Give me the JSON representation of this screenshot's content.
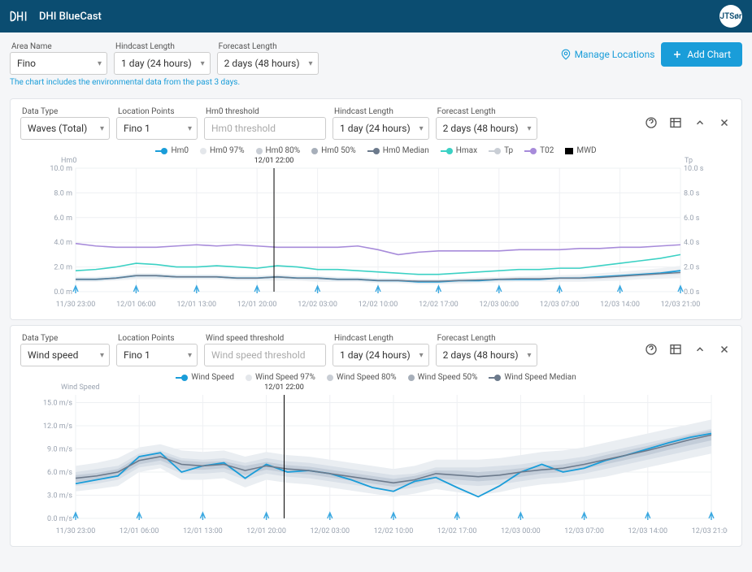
{
  "header": {
    "app_title": "DHI BlueCast",
    "avatar": "JTSør"
  },
  "toolbar": {
    "area": {
      "label": "Area Name",
      "value": "Fino"
    },
    "hindcast": {
      "label": "Hindcast Length",
      "value": "1 day (24 hours)"
    },
    "forecast": {
      "label": "Forecast Length",
      "value": "2 days (48 hours)"
    },
    "manage": "Manage Locations",
    "add": "Add Chart"
  },
  "hint": "The chart includes the environmental data from the past 3 days.",
  "panels": [
    {
      "selects": {
        "datatype": {
          "label": "Data Type",
          "value": "Waves (Total)"
        },
        "location": {
          "label": "Location Points",
          "value": "Fino 1"
        },
        "threshold": {
          "label": "Hm0 threshold",
          "placeholder": "Hm0 threshold"
        },
        "hindcast": {
          "label": "Hindcast Length",
          "value": "1 day (24 hours)"
        },
        "forecast": {
          "label": "Forecast Length",
          "value": "2 days (48 hours)"
        }
      },
      "legend": [
        {
          "label": "Hm0",
          "color": "#1a9dd9",
          "kind": "linedot"
        },
        {
          "label": "Hm0 97%",
          "color": "#e4e7eb",
          "kind": "dot"
        },
        {
          "label": "Hm0 80%",
          "color": "#c9ced5",
          "kind": "dot"
        },
        {
          "label": "Hm0 50%",
          "color": "#a7afba",
          "kind": "dot"
        },
        {
          "label": "Hm0 Median",
          "color": "#6c7a8c",
          "kind": "linedot"
        },
        {
          "label": "Hmax",
          "color": "#3bd1c4",
          "kind": "linedot"
        },
        {
          "label": "Tp",
          "color": "#c9ced5",
          "kind": "linedot"
        },
        {
          "label": "T02",
          "color": "#a78bda",
          "kind": "linedot"
        },
        {
          "label": "MWD",
          "color": "#000000",
          "kind": "sq"
        }
      ],
      "chart": {
        "height": 190,
        "y_title_left": "Hm0",
        "y_title_right": "Tp",
        "y_left": {
          "min": 0,
          "max": 10,
          "step": 2,
          "unit": " m"
        },
        "y_right": {
          "min": 0,
          "max": 10,
          "step": 2,
          "unit": " s"
        },
        "x_labels": [
          "11/30 23:00",
          "12/01 06:00",
          "12/01 13:00",
          "12/01 20:00",
          "12/02 03:00",
          "12/02 10:00",
          "12/02 17:00",
          "12/03 00:00",
          "12/03 07:00",
          "12/03 14:00",
          "12/03 21:00"
        ],
        "cursor_index": 3,
        "cursor_label": "12/01 22:00",
        "series": {
          "t02": {
            "color": "#a78bda",
            "width": 1.6,
            "y": [
              3.9,
              3.7,
              3.6,
              3.6,
              3.6,
              3.7,
              3.8,
              3.7,
              3.8,
              3.7,
              3.6,
              3.6,
              3.6,
              3.6,
              3.7,
              3.4,
              3.0,
              3.2,
              3.3,
              3.3,
              3.3,
              3.3,
              3.4,
              3.4,
              3.4,
              3.5,
              3.5,
              3.6,
              3.6,
              3.7,
              3.8
            ]
          },
          "hmax": {
            "color": "#3bd1c4",
            "width": 1.6,
            "y": [
              1.7,
              1.8,
              2.0,
              2.3,
              2.2,
              2.0,
              2.0,
              2.1,
              2.0,
              1.9,
              2.1,
              2.0,
              1.8,
              1.8,
              1.7,
              1.6,
              1.5,
              1.4,
              1.4,
              1.5,
              1.6,
              1.7,
              1.8,
              1.8,
              1.9,
              1.9,
              2.1,
              2.3,
              2.5,
              2.7,
              3.0
            ]
          },
          "hm0": {
            "color": "#1a9dd9",
            "width": 1.8,
            "y": [
              1.0,
              1.0,
              1.1,
              1.3,
              1.3,
              1.2,
              1.2,
              1.2,
              1.1,
              1.1,
              1.2,
              1.1,
              1.1,
              1.0,
              1.0,
              0.9,
              0.9,
              0.8,
              0.8,
              0.9,
              0.9,
              1.0,
              1.0,
              1.0,
              1.1,
              1.1,
              1.2,
              1.3,
              1.4,
              1.5,
              1.7
            ]
          },
          "median": {
            "color": "#6c7a8c",
            "width": 1.4,
            "y": [
              1.0,
              1.0,
              1.1,
              1.3,
              1.3,
              1.2,
              1.2,
              1.2,
              1.1,
              1.1,
              1.2,
              1.1,
              1.1,
              1.0,
              1.0,
              0.9,
              0.9,
              0.85,
              0.85,
              0.9,
              0.95,
              1.0,
              1.05,
              1.05,
              1.1,
              1.1,
              1.15,
              1.25,
              1.35,
              1.45,
              1.55
            ]
          }
        },
        "bands": [
          {
            "color": "#eef1f4",
            "lo": [
              0.8,
              0.8,
              0.9,
              1.0,
              1.0,
              1.0,
              1.0,
              1.0,
              0.9,
              0.9,
              0.9,
              0.9,
              0.8,
              0.8,
              0.8,
              0.7,
              0.7,
              0.6,
              0.6,
              0.65,
              0.7,
              0.75,
              0.8,
              0.8,
              0.8,
              0.8,
              0.85,
              0.9,
              1.0,
              1.05,
              1.1
            ],
            "hi": [
              1.2,
              1.2,
              1.3,
              1.5,
              1.5,
              1.4,
              1.4,
              1.4,
              1.3,
              1.3,
              1.4,
              1.3,
              1.3,
              1.2,
              1.2,
              1.1,
              1.1,
              1.0,
              1.0,
              1.1,
              1.15,
              1.2,
              1.25,
              1.3,
              1.35,
              1.4,
              1.5,
              1.6,
              1.75,
              1.9,
              2.1
            ]
          },
          {
            "color": "#e0e5eb",
            "lo": [
              0.9,
              0.9,
              1.0,
              1.15,
              1.15,
              1.1,
              1.1,
              1.1,
              1.0,
              1.0,
              1.05,
              1.0,
              0.95,
              0.9,
              0.9,
              0.8,
              0.8,
              0.7,
              0.7,
              0.75,
              0.8,
              0.85,
              0.9,
              0.9,
              0.95,
              0.95,
              1.0,
              1.1,
              1.2,
              1.3,
              1.4
            ],
            "hi": [
              1.1,
              1.1,
              1.2,
              1.4,
              1.4,
              1.3,
              1.3,
              1.3,
              1.2,
              1.2,
              1.3,
              1.2,
              1.2,
              1.1,
              1.1,
              1.0,
              1.0,
              0.95,
              0.95,
              1.0,
              1.05,
              1.1,
              1.15,
              1.15,
              1.2,
              1.25,
              1.3,
              1.4,
              1.55,
              1.65,
              1.8
            ]
          }
        ],
        "arrows": true
      }
    },
    {
      "selects": {
        "datatype": {
          "label": "Data Type",
          "value": "Wind speed"
        },
        "location": {
          "label": "Location Points",
          "value": "Fino 1"
        },
        "threshold": {
          "label": "Wind speed threshold",
          "placeholder": "Wind speed threshold"
        },
        "hindcast": {
          "label": "Hindcast Length",
          "value": "1 day (24 hours)"
        },
        "forecast": {
          "label": "Forecast Length",
          "value": "2 days (48 hours)"
        }
      },
      "legend": [
        {
          "label": "Wind Speed",
          "color": "#1a9dd9",
          "kind": "linedot"
        },
        {
          "label": "Wind Speed 97%",
          "color": "#e4e7eb",
          "kind": "dot"
        },
        {
          "label": "Wind Speed 80%",
          "color": "#c9ced5",
          "kind": "dot"
        },
        {
          "label": "Wind Speed 50%",
          "color": "#a7afba",
          "kind": "dot"
        },
        {
          "label": "Wind Speed Median",
          "color": "#6c7a8c",
          "kind": "linedot"
        }
      ],
      "chart": {
        "height": 190,
        "y_title_left": "Wind Speed",
        "y_left": {
          "min": 0,
          "max": 16,
          "step": 3,
          "unit": " m/s"
        },
        "x_labels": [
          "11/30 23:00",
          "12/01 06:00",
          "12/01 13:00",
          "12/01 20:00",
          "12/02 03:00",
          "12/02 10:00",
          "12/02 17:00",
          "12/03 00:00",
          "12/03 07:00",
          "12/03 14:00",
          "12/03 21:00"
        ],
        "cursor_index": 3,
        "cursor_label": "12/01 22:00",
        "series": {
          "wind": {
            "color": "#1a9dd9",
            "width": 1.8,
            "y": [
              4.5,
              5.0,
              5.5,
              8.0,
              8.5,
              6.0,
              6.8,
              7.2,
              5.2,
              7.0,
              6.0,
              6.2,
              5.8,
              5.0,
              4.0,
              3.5,
              4.8,
              5.3,
              4.0,
              2.8,
              4.2,
              6.0,
              7.0,
              6.0,
              6.5,
              7.5,
              8.2,
              9.0,
              9.8,
              10.5,
              11.0
            ]
          },
          "median": {
            "color": "#6c7a8c",
            "width": 1.6,
            "y": [
              5.2,
              5.5,
              6.0,
              7.5,
              8.0,
              7.0,
              6.8,
              7.0,
              6.2,
              6.8,
              6.4,
              6.2,
              5.8,
              5.4,
              5.0,
              4.6,
              5.0,
              5.8,
              5.6,
              5.4,
              5.6,
              6.0,
              6.3,
              6.5,
              7.0,
              7.6,
              8.2,
              8.8,
              9.5,
              10.2,
              10.8
            ]
          }
        },
        "bands": [
          {
            "color": "#eaeef2",
            "lo": [
              3.5,
              3.8,
              4.2,
              6.0,
              6.5,
              5.0,
              5.0,
              5.2,
              4.0,
              5.0,
              4.6,
              4.4,
              4.0,
              3.6,
              3.2,
              2.8,
              3.2,
              3.8,
              3.4,
              3.0,
              3.4,
              4.0,
              4.4,
              4.6,
              5.0,
              5.4,
              6.0,
              6.6,
              7.2,
              7.8,
              8.4
            ],
            "hi": [
              6.8,
              7.2,
              7.8,
              9.2,
              9.6,
              8.8,
              8.6,
              8.8,
              8.0,
              8.6,
              8.2,
              8.0,
              7.6,
              7.2,
              6.8,
              6.4,
              6.8,
              7.6,
              7.6,
              7.6,
              7.8,
              8.2,
              8.6,
              8.8,
              9.2,
              9.8,
              10.4,
              11.0,
              11.6,
              12.2,
              12.8
            ]
          },
          {
            "color": "#d9e0e8",
            "lo": [
              4.2,
              4.5,
              5.0,
              6.6,
              7.0,
              5.8,
              5.8,
              6.0,
              5.0,
              5.8,
              5.4,
              5.2,
              4.8,
              4.4,
              4.0,
              3.6,
              4.0,
              4.6,
              4.4,
              4.2,
              4.4,
              4.8,
              5.2,
              5.4,
              5.8,
              6.4,
              7.0,
              7.6,
              8.2,
              8.8,
              9.4
            ],
            "hi": [
              6.0,
              6.4,
              6.8,
              8.4,
              8.8,
              7.8,
              7.6,
              7.8,
              7.2,
              7.8,
              7.4,
              7.2,
              6.8,
              6.4,
              6.0,
              5.6,
              5.8,
              6.6,
              6.6,
              6.6,
              6.8,
              7.0,
              7.4,
              7.6,
              8.0,
              8.6,
              9.2,
              9.8,
              10.4,
              11.0,
              11.6
            ]
          },
          {
            "color": "#c3cdd9",
            "lo": [
              4.7,
              5.0,
              5.5,
              7.0,
              7.5,
              6.4,
              6.3,
              6.5,
              5.6,
              6.3,
              5.9,
              5.7,
              5.3,
              4.9,
              4.5,
              4.1,
              4.5,
              5.2,
              5.0,
              4.8,
              5.0,
              5.4,
              5.8,
              6.0,
              6.4,
              7.0,
              7.6,
              8.2,
              8.9,
              9.5,
              10.1
            ],
            "hi": [
              5.6,
              5.9,
              6.4,
              8.0,
              8.4,
              7.5,
              7.3,
              7.4,
              6.8,
              7.3,
              6.9,
              6.7,
              6.3,
              5.9,
              5.5,
              5.1,
              5.5,
              6.2,
              6.2,
              6.0,
              6.2,
              6.5,
              6.8,
              7.0,
              7.5,
              8.2,
              8.8,
              9.4,
              10.1,
              10.8,
              11.4
            ]
          }
        ],
        "arrows": true
      }
    }
  ]
}
